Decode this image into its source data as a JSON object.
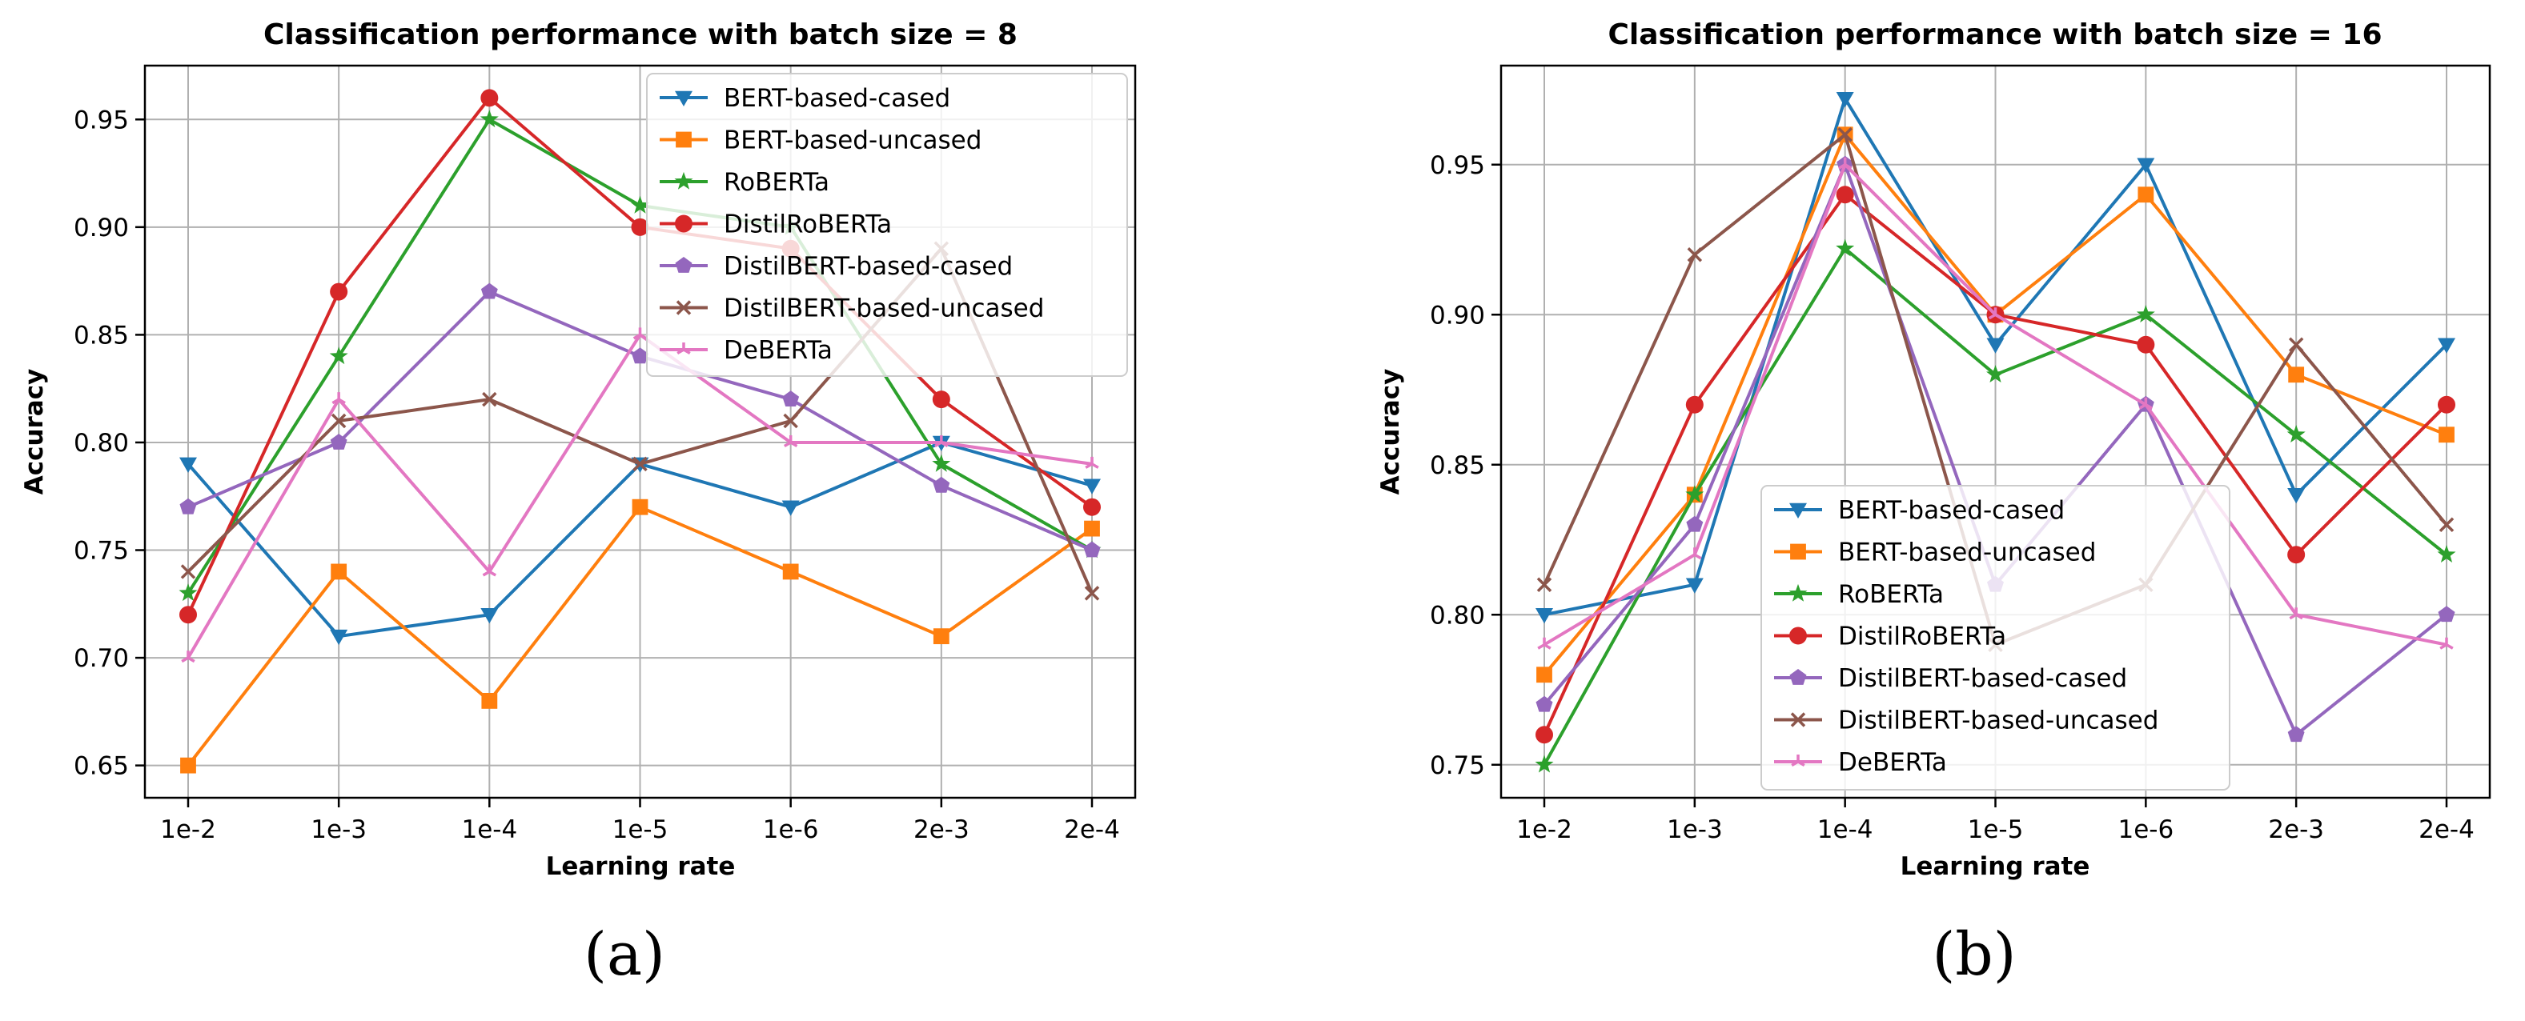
{
  "chart_data": [
    {
      "type": "line",
      "title": "Classification performance with batch size = 8",
      "xlabel": "Learning rate",
      "ylabel": "Accuracy",
      "categories": [
        "1e-2",
        "1e-3",
        "1e-4",
        "1e-5",
        "1e-6",
        "2e-3",
        "2e-4"
      ],
      "ylim": [
        0.635,
        0.975
      ],
      "yticks": [
        "0.65",
        "0.70",
        "0.75",
        "0.80",
        "0.85",
        "0.90",
        "0.95"
      ],
      "grid": true,
      "legend_position": "top-right",
      "series": [
        {
          "name": "BERT-based-cased",
          "color": "#1f77b4",
          "marker": "triangle-down",
          "values": [
            0.79,
            0.71,
            0.72,
            0.79,
            0.77,
            0.8,
            0.78
          ]
        },
        {
          "name": "BERT-based-uncased",
          "color": "#ff7f0e",
          "marker": "square",
          "values": [
            0.65,
            0.74,
            0.68,
            0.77,
            0.74,
            0.71,
            0.76
          ]
        },
        {
          "name": "RoBERTa",
          "color": "#2ca02c",
          "marker": "star",
          "values": [
            0.73,
            0.84,
            0.95,
            0.91,
            0.9,
            0.79,
            0.75
          ]
        },
        {
          "name": "DistilRoBERTa",
          "color": "#d62728",
          "marker": "circle",
          "values": [
            0.72,
            0.87,
            0.96,
            0.9,
            0.89,
            0.82,
            0.77
          ]
        },
        {
          "name": "DistilBERT-based-cased",
          "color": "#9467bd",
          "marker": "pentagon",
          "values": [
            0.77,
            0.8,
            0.87,
            0.84,
            0.82,
            0.78,
            0.75
          ]
        },
        {
          "name": "DistilBERT-based-uncased",
          "color": "#8c564b",
          "marker": "x",
          "values": [
            0.74,
            0.81,
            0.82,
            0.79,
            0.81,
            0.89,
            0.73
          ]
        },
        {
          "name": "DeBERTa",
          "color": "#e377c2",
          "marker": "tri",
          "values": [
            0.7,
            0.82,
            0.74,
            0.85,
            0.8,
            0.8,
            0.79
          ]
        }
      ]
    },
    {
      "type": "line",
      "title": "Classification performance with batch size = 16",
      "xlabel": "Learning rate",
      "ylabel": "Accuracy",
      "categories": [
        "1e-2",
        "1e-3",
        "1e-4",
        "1e-5",
        "1e-6",
        "2e-3",
        "2e-4"
      ],
      "ylim": [
        0.739,
        0.983
      ],
      "yticks": [
        "0.75",
        "0.80",
        "0.85",
        "0.90",
        "0.95"
      ],
      "grid": true,
      "legend_position": "lower-center",
      "series": [
        {
          "name": "BERT-based-cased",
          "color": "#1f77b4",
          "marker": "triangle-down",
          "values": [
            0.8,
            0.81,
            0.972,
            0.89,
            0.95,
            0.84,
            0.89
          ]
        },
        {
          "name": "BERT-based-uncased",
          "color": "#ff7f0e",
          "marker": "square",
          "values": [
            0.78,
            0.84,
            0.96,
            0.9,
            0.94,
            0.88,
            0.86
          ]
        },
        {
          "name": "RoBERTa",
          "color": "#2ca02c",
          "marker": "star",
          "values": [
            0.75,
            0.84,
            0.922,
            0.88,
            0.9,
            0.86,
            0.82
          ]
        },
        {
          "name": "DistilRoBERTa",
          "color": "#d62728",
          "marker": "circle",
          "values": [
            0.76,
            0.87,
            0.94,
            0.9,
            0.89,
            0.82,
            0.87
          ]
        },
        {
          "name": "DistilBERT-based-cased",
          "color": "#9467bd",
          "marker": "pentagon",
          "values": [
            0.77,
            0.83,
            0.95,
            0.81,
            0.87,
            0.76,
            0.8
          ]
        },
        {
          "name": "DistilBERT-based-uncased",
          "color": "#8c564b",
          "marker": "x",
          "values": [
            0.81,
            0.92,
            0.96,
            0.79,
            0.81,
            0.89,
            0.83
          ]
        },
        {
          "name": "DeBERTa",
          "color": "#e377c2",
          "marker": "tri",
          "values": [
            0.79,
            0.82,
            0.95,
            0.9,
            0.87,
            0.8,
            0.79
          ]
        }
      ]
    }
  ],
  "captions": [
    "(a)",
    "(b)"
  ]
}
